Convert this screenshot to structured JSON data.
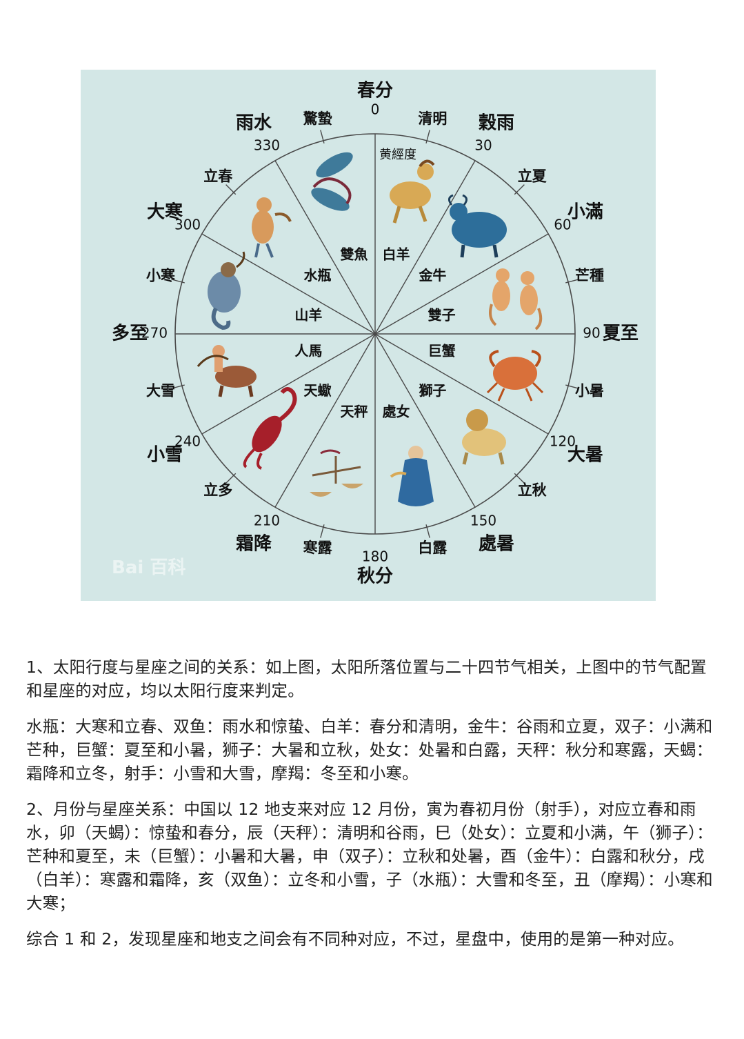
{
  "diagram": {
    "ecliptic_label": "黄經度",
    "watermark": "Bai 百科",
    "degree_marks": [
      "0",
      "30",
      "60",
      "90",
      "120",
      "150",
      "180",
      "210",
      "240",
      "270",
      "300",
      "330"
    ],
    "major_terms": [
      "春分",
      "穀雨",
      "小滿",
      "夏至",
      "大暑",
      "處暑",
      "秋分",
      "霜降",
      "小雪",
      "多至",
      "大寒",
      "雨水"
    ],
    "minor_terms": [
      "清明",
      "立夏",
      "芒種",
      "小暑",
      "立秋",
      "白露",
      "寒露",
      "立多",
      "大雪",
      "小寒",
      "立春",
      "驚蟄"
    ],
    "signs": [
      "白羊",
      "金牛",
      "雙子",
      "巨蟹",
      "獅子",
      "處女",
      "天秤",
      "天蠍",
      "人馬",
      "山羊",
      "水瓶",
      "雙魚"
    ],
    "colors": {
      "background": "#d3e7e6",
      "lines": "#4a4a4a",
      "pisces": "#3f7a9a",
      "aries": "#d8a955",
      "taurus": "#2d6e9a",
      "gemini": "#e4a56a",
      "cancer": "#d9703a",
      "leo": "#e2c27a",
      "virgo": "#2f6aa0",
      "libra": "#c9a36a",
      "scorpio": "#a61f2a",
      "sagittarius": "#9b5a38",
      "capricorn": "#6c8ba8",
      "aquarius": "#d89a5c"
    }
  },
  "text": {
    "p1": "1、太阳行度与星座之间的关系：如上图，太阳所落位置与二十四节气相关，上图中的节气配置和星座的对应，均以太阳行度来判定。",
    "p2": "水瓶：大寒和立春、双鱼：雨水和惊蛰、白羊：春分和清明，金牛：谷雨和立夏，双子：小满和芒种，巨蟹：夏至和小暑，狮子：大暑和立秋，处女：处暑和白露，天秤：秋分和寒露，天蝎：霜降和立冬，射手：小雪和大雪，摩羯：冬至和小寒。",
    "p3": "2、月份与星座关系：中国以 12 地支来对应 12 月份，寅为春初月份（射手），对应立春和雨水，卯（天蝎）：惊蛰和春分，辰（天秤）：清明和谷雨，巳（处女）：立夏和小满，午（狮子）：芒种和夏至，未（巨蟹）：小暑和大暑，申（双子）：立秋和处暑，酉（金牛）：白露和秋分，戌（白羊）：寒露和霜降，亥（双鱼）：立冬和小雪，子（水瓶）：大雪和冬至，丑（摩羯）：小寒和大寒；",
    "p4": "综合 1 和 2，发现星座和地支之间会有不同种对应，不过，星盘中，使用的是第一种对应。"
  }
}
